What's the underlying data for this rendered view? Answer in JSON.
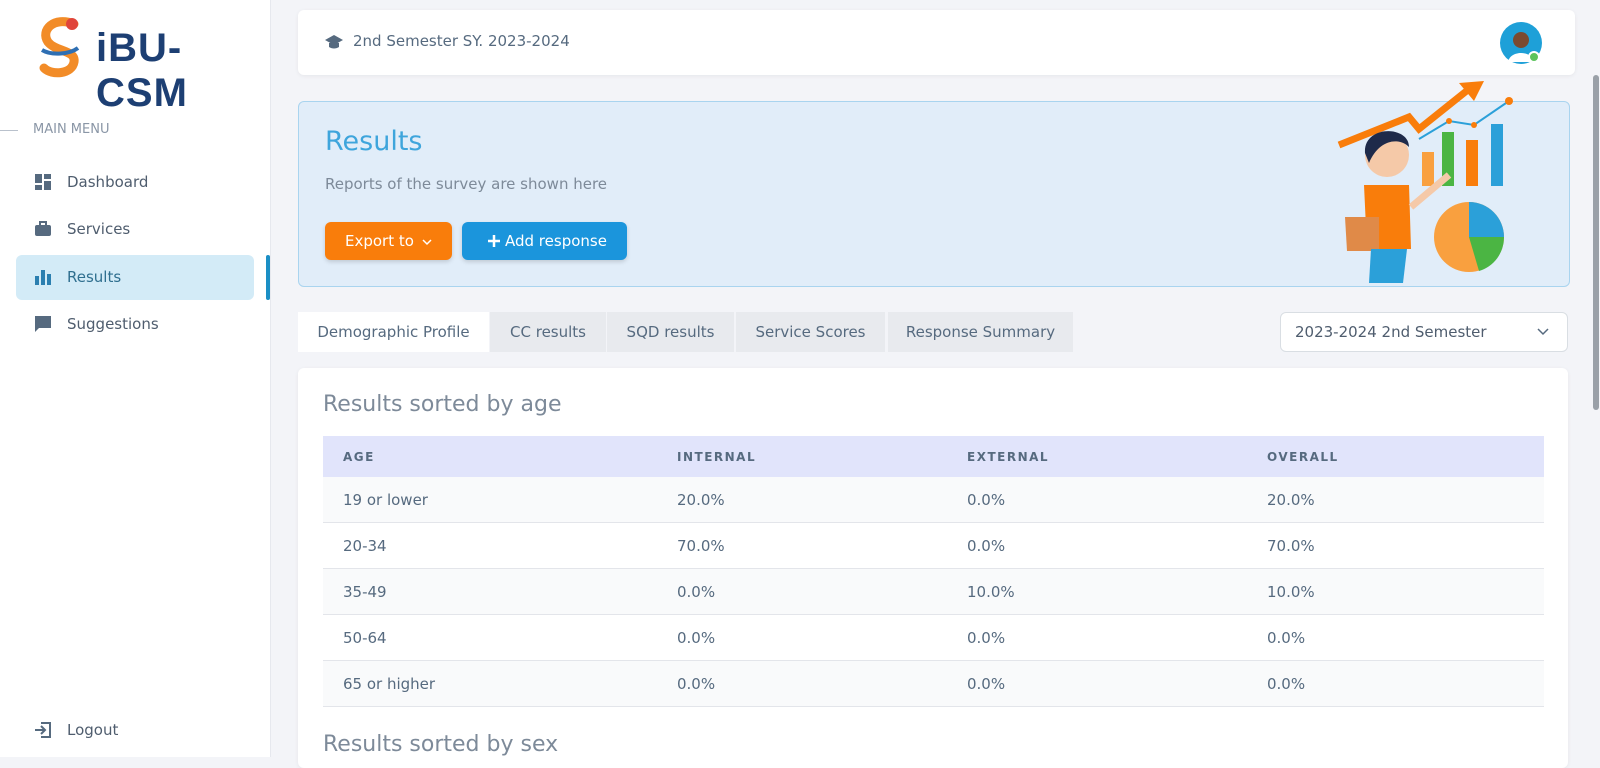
{
  "sidebar": {
    "logo": "iBU-CSM",
    "menu_heading": "MAIN MENU",
    "menu": [
      "Dashboard",
      "Services",
      "Results",
      "Suggestions"
    ],
    "logout": "Logout"
  },
  "header": {
    "semester": "2nd Semester SY. 2023-2024"
  },
  "banner": {
    "title": "Results",
    "subtitle": "Reports of the survey are shown here",
    "buttons": [
      "Export to",
      "Add response"
    ]
  },
  "tabs": [
    "Demographic Profile",
    "CC results",
    "SQD results",
    "Service Scores",
    "Response Summary"
  ],
  "filter": {
    "selected": "2023-2024 2nd Semester"
  },
  "sections": [
    {
      "title": "Results sorted by age",
      "table": {
        "columns": [
          "AGE",
          "INTERNAL",
          "EXTERNAL",
          "OVERALL"
        ],
        "rows": [
          [
            "19 or lower",
            "20.0%",
            "0.0%",
            "20.0%"
          ],
          [
            "20-34",
            "70.0%",
            "0.0%",
            "70.0%"
          ],
          [
            "35-49",
            "0.0%",
            "10.0%",
            "10.0%"
          ],
          [
            "50-64",
            "0.0%",
            "0.0%",
            "0.0%"
          ],
          [
            "65 or higher",
            "0.0%",
            "0.0%",
            "0.0%"
          ]
        ]
      }
    },
    {
      "title": "Results sorted by sex"
    }
  ]
}
